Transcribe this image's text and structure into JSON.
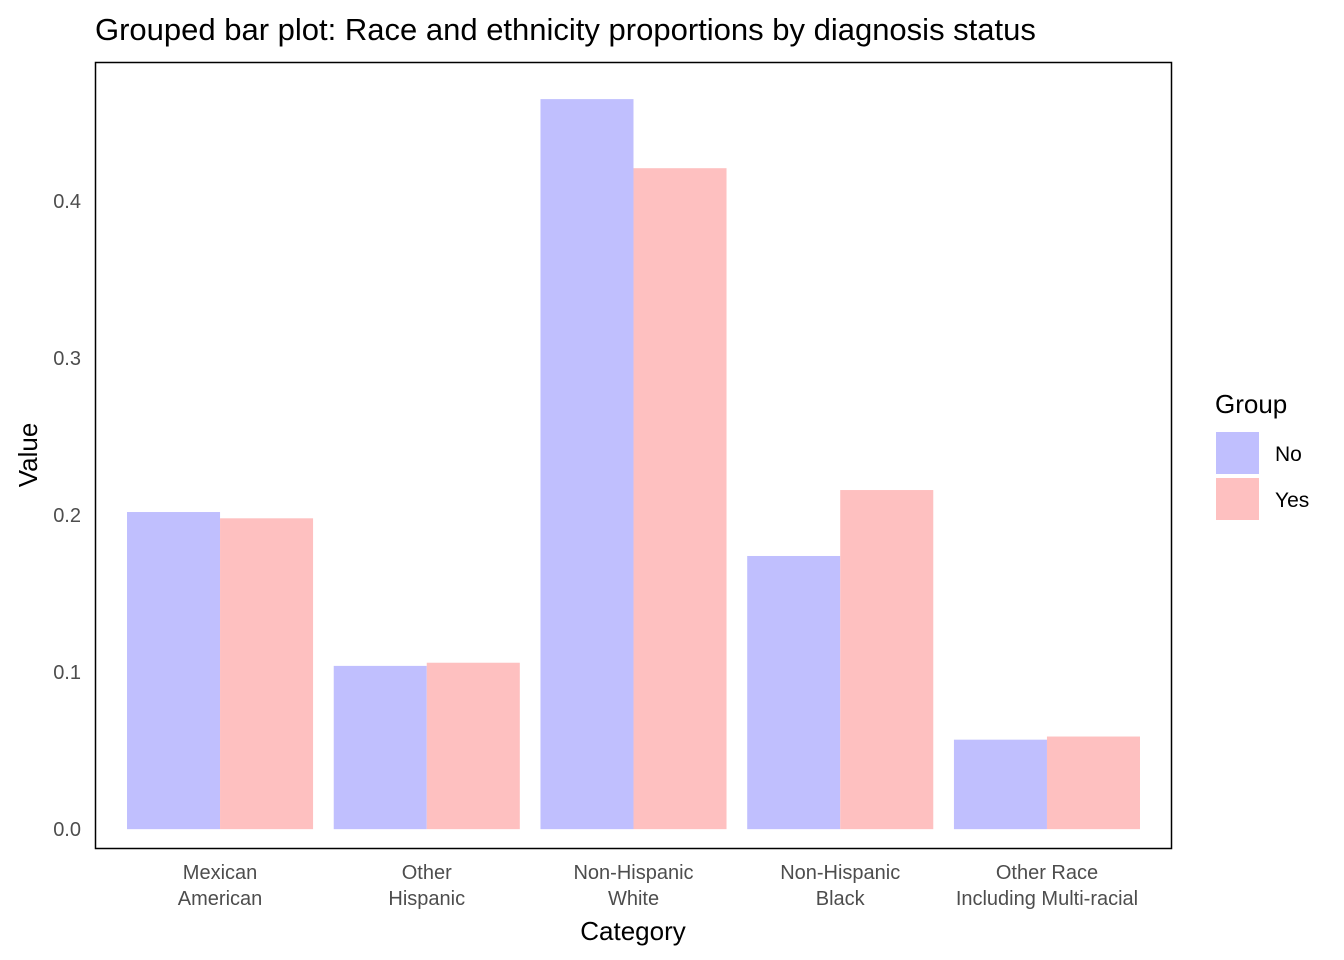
{
  "chart_data": {
    "type": "bar",
    "title": "Grouped bar plot: Race and ethnicity proportions by diagnosis status",
    "xlabel": "Category",
    "ylabel": "Value",
    "categories": [
      [
        "Mexican",
        "American"
      ],
      [
        "Other",
        "Hispanic"
      ],
      [
        "Non-Hispanic",
        "White"
      ],
      [
        "Non-Hispanic",
        "Black"
      ],
      [
        "Other Race",
        "Including Multi-racial"
      ]
    ],
    "series": [
      {
        "name": "No",
        "color": "#c0bffe",
        "values": [
          0.202,
          0.104,
          0.465,
          0.174,
          0.057
        ]
      },
      {
        "name": "Yes",
        "color": "#fec0c0",
        "values": [
          0.198,
          0.106,
          0.421,
          0.216,
          0.059
        ]
      }
    ],
    "ylim": [
      -0.012,
      0.488
    ],
    "yticks": [
      0.0,
      0.1,
      0.2,
      0.3,
      0.4
    ],
    "ytick_labels": [
      "0.0",
      "0.1",
      "0.2",
      "0.3",
      "0.4"
    ],
    "grid": false,
    "legend": {
      "title": "Group",
      "position": "right"
    }
  }
}
